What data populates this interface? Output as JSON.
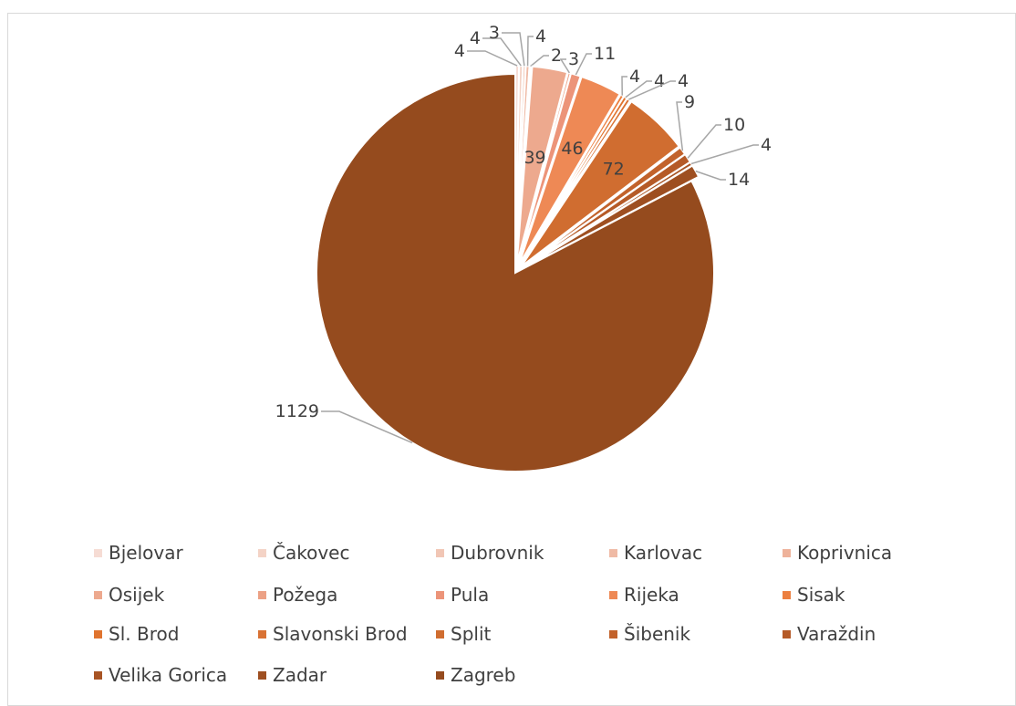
{
  "chart_data": {
    "type": "pie",
    "title": "",
    "legend_position": "bottom",
    "slices": [
      {
        "label": "Bjelovar",
        "value": 4,
        "color": "#f6dcd4"
      },
      {
        "label": "Čakovec",
        "value": 4,
        "color": "#f4d3c6"
      },
      {
        "label": "Dubrovnik",
        "value": 3,
        "color": "#f1c6b5"
      },
      {
        "label": "Karlovac",
        "value": 4,
        "color": "#efbaa5"
      },
      {
        "label": "Koprivnica",
        "value": 2,
        "color": "#eeb29a"
      },
      {
        "label": "Osijek",
        "value": 39,
        "color": "#eda98e"
      },
      {
        "label": "Požega",
        "value": 3,
        "color": "#eca185"
      },
      {
        "label": "Pula",
        "value": 11,
        "color": "#ec9479"
      },
      {
        "label": "Rijeka",
        "value": 46,
        "color": "#ee8955"
      },
      {
        "label": "Sisak",
        "value": 4,
        "color": "#ec7f3f"
      },
      {
        "label": "Sl. Brod",
        "value": 4,
        "color": "#e0742f"
      },
      {
        "label": "Slavonski Brod",
        "value": 4,
        "color": "#d97234"
      },
      {
        "label": "Split",
        "value": 72,
        "color": "#d06d30"
      },
      {
        "label": "Šibenik",
        "value": 9,
        "color": "#c2622b"
      },
      {
        "label": "Varaždin",
        "value": 10,
        "color": "#b55a27"
      },
      {
        "label": "Velika Gorica",
        "value": 4,
        "color": "#a85424"
      },
      {
        "label": "Zadar",
        "value": 14,
        "color": "#9e4f21"
      },
      {
        "label": "Zagreb",
        "value": 1129,
        "color": "#954b1e"
      }
    ]
  }
}
